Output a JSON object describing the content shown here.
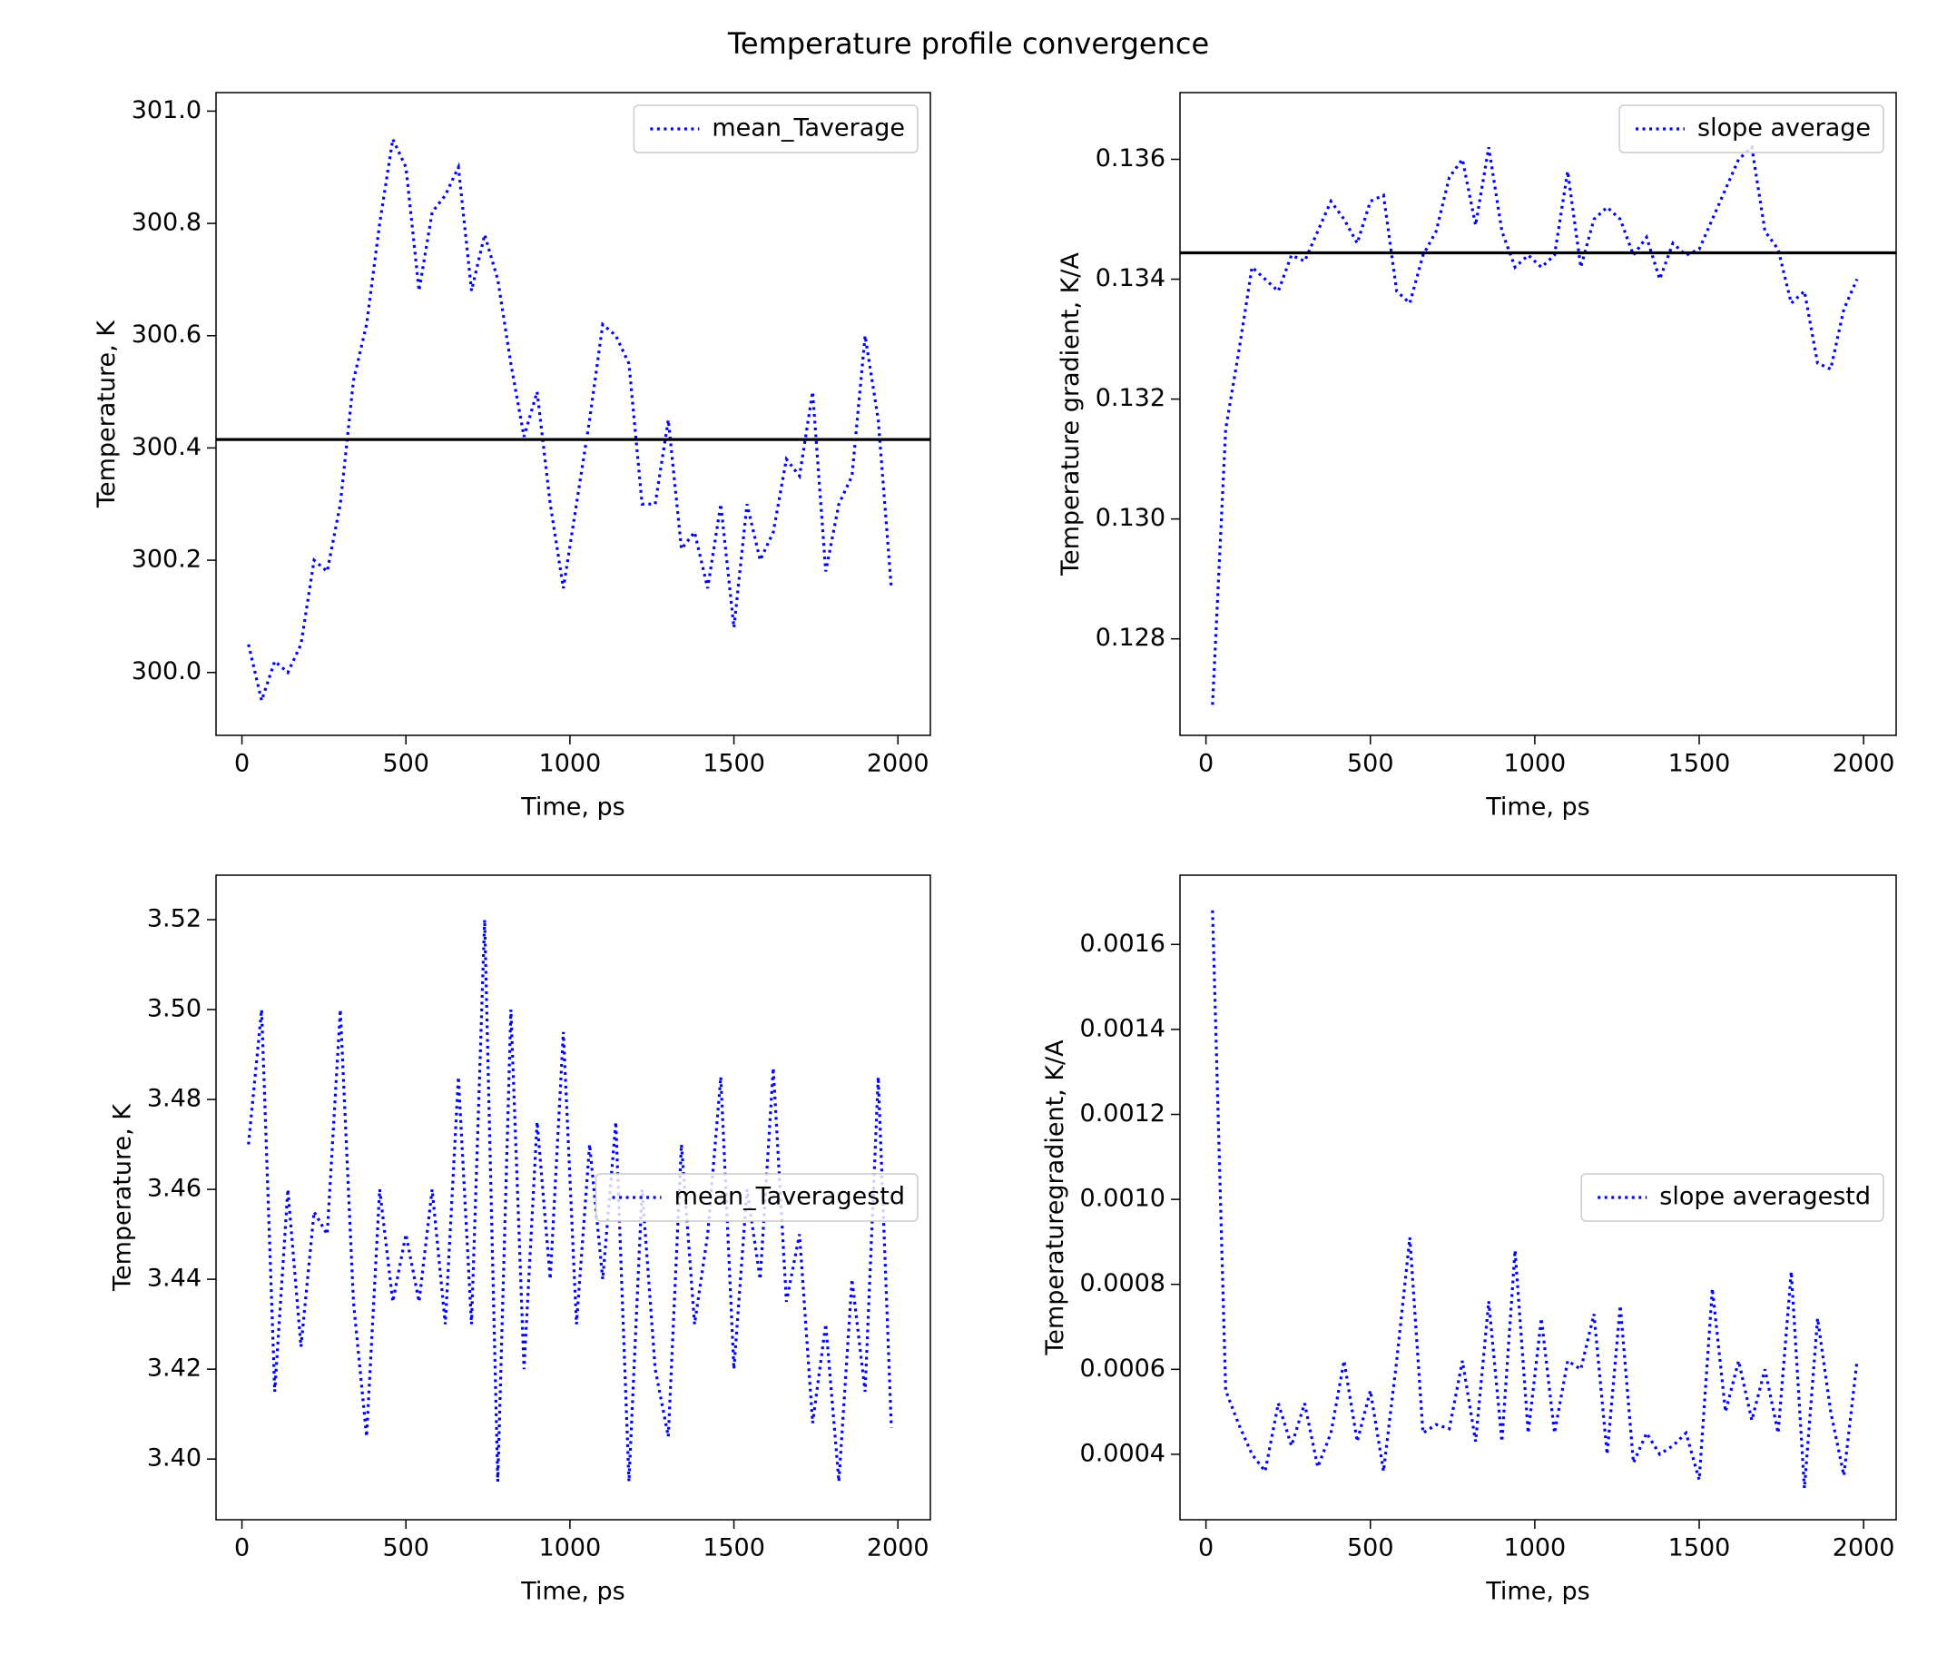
{
  "title": "Temperature profile convergence",
  "chart_data": [
    {
      "type": "line",
      "xlabel": "Time, ps",
      "ylabel": "Temperature, K",
      "x": [
        20,
        60,
        100,
        140,
        180,
        220,
        260,
        300,
        340,
        380,
        420,
        460,
        500,
        540,
        580,
        620,
        660,
        700,
        740,
        780,
        820,
        860,
        900,
        940,
        980,
        1020,
        1060,
        1100,
        1140,
        1180,
        1220,
        1260,
        1300,
        1340,
        1380,
        1420,
        1460,
        1500,
        1540,
        1580,
        1620,
        1660,
        1700,
        1740,
        1780,
        1820,
        1860,
        1900,
        1940,
        1980
      ],
      "series": [
        {
          "name": "mean_Taverage",
          "color": "blue",
          "linestyle": "dotted",
          "values": [
            300.05,
            299.95,
            300.02,
            300.0,
            300.05,
            300.2,
            300.18,
            300.3,
            300.52,
            300.62,
            300.8,
            300.95,
            300.9,
            300.68,
            300.82,
            300.85,
            300.9,
            300.68,
            300.78,
            300.7,
            300.55,
            300.42,
            300.5,
            300.3,
            300.15,
            300.3,
            300.45,
            300.62,
            300.6,
            300.55,
            300.3,
            300.3,
            300.45,
            300.22,
            300.25,
            300.15,
            300.3,
            300.08,
            300.3,
            300.2,
            300.25,
            300.38,
            300.35,
            300.5,
            300.18,
            300.3,
            300.35,
            300.6,
            300.45,
            300.15
          ]
        }
      ],
      "hline": 300.415,
      "hline_color": "black",
      "xlim": [
        -79,
        2099
      ],
      "xticks": [
        0,
        500,
        1000,
        1500,
        2000
      ],
      "ylim": [
        299.888,
        301.033
      ],
      "yticks": [
        {
          "value": 300.0,
          "label": "300.0"
        },
        300.2,
        300.4,
        300.6,
        300.8,
        {
          "value": 301.0,
          "label": "301.0"
        }
      ],
      "legend": "upper right"
    },
    {
      "type": "line",
      "xlabel": "Time, ps",
      "ylabel": "Temperature gradient, K/A",
      "x": [
        20,
        60,
        100,
        140,
        180,
        220,
        260,
        300,
        340,
        380,
        420,
        460,
        500,
        540,
        580,
        620,
        660,
        700,
        740,
        780,
        820,
        860,
        900,
        940,
        980,
        1020,
        1060,
        1100,
        1140,
        1180,
        1220,
        1260,
        1300,
        1340,
        1380,
        1420,
        1460,
        1500,
        1540,
        1580,
        1620,
        1660,
        1700,
        1740,
        1780,
        1820,
        1860,
        1900,
        1940,
        1980
      ],
      "series": [
        {
          "name": "slope average",
          "color": "blue",
          "linestyle": "dotted",
          "values": [
            0.1269,
            0.1315,
            0.1328,
            0.1342,
            0.134,
            0.1338,
            0.1344,
            0.1343,
            0.1348,
            0.1353,
            0.135,
            0.1346,
            0.1353,
            0.1354,
            0.1338,
            0.1336,
            0.1344,
            0.1348,
            0.1357,
            0.136,
            0.1349,
            0.1362,
            0.1348,
            0.1342,
            0.1344,
            0.1342,
            0.1344,
            0.1358,
            0.1342,
            0.135,
            0.1352,
            0.135,
            0.1344,
            0.1347,
            0.134,
            0.1346,
            0.1344,
            0.1345,
            0.135,
            0.1355,
            0.136,
            0.1362,
            0.1348,
            0.1345,
            0.1336,
            0.1338,
            0.1326,
            0.1325,
            0.1335,
            0.134
          ]
        }
      ],
      "hline": 0.13444,
      "hline_color": "black",
      "xlim": [
        -79,
        2099
      ],
      "xticks": [
        0,
        500,
        1000,
        1500,
        2000
      ],
      "ylim": [
        0.12639,
        0.137113
      ],
      "yticks": [
        0.128,
        {
          "value": 0.13,
          "label": "0.130"
        },
        0.132,
        0.134,
        0.136
      ],
      "legend": "upper right"
    },
    {
      "type": "line",
      "xlabel": "Time, ps",
      "ylabel": "Temperature, K",
      "x": [
        20,
        60,
        100,
        140,
        180,
        220,
        260,
        300,
        340,
        380,
        420,
        460,
        500,
        540,
        580,
        620,
        660,
        700,
        740,
        780,
        820,
        860,
        900,
        940,
        980,
        1020,
        1060,
        1100,
        1140,
        1180,
        1220,
        1260,
        1300,
        1340,
        1380,
        1420,
        1460,
        1500,
        1540,
        1580,
        1620,
        1660,
        1700,
        1740,
        1780,
        1820,
        1860,
        1900,
        1940,
        1980
      ],
      "series": [
        {
          "name": "mean_Taveragestd",
          "color": "blue",
          "linestyle": "dotted",
          "values": [
            3.47,
            3.5,
            3.415,
            3.46,
            3.425,
            3.455,
            3.45,
            3.5,
            3.435,
            3.405,
            3.46,
            3.435,
            3.45,
            3.435,
            3.46,
            3.43,
            3.485,
            3.43,
            3.52,
            3.395,
            3.5,
            3.42,
            3.475,
            3.44,
            3.495,
            3.43,
            3.47,
            3.44,
            3.475,
            3.395,
            3.46,
            3.42,
            3.405,
            3.47,
            3.43,
            3.45,
            3.485,
            3.42,
            3.46,
            3.44,
            3.487,
            3.435,
            3.45,
            3.408,
            3.43,
            3.395,
            3.44,
            3.415,
            3.485,
            3.407
          ]
        }
      ],
      "xlim": [
        -79,
        2099
      ],
      "xticks": [
        0,
        500,
        1000,
        1500,
        2000
      ],
      "ylim": [
        3.3865,
        3.5299
      ],
      "yticks": [
        {
          "value": 3.4,
          "label": "3.40"
        },
        3.42,
        3.44,
        3.46,
        3.48,
        {
          "value": 3.5,
          "label": "3.50"
        },
        3.52
      ],
      "legend": "center right"
    },
    {
      "type": "line",
      "xlabel": "Time, ps",
      "ylabel": "Temperaturegradient, K/A",
      "x": [
        20,
        60,
        100,
        140,
        180,
        220,
        260,
        300,
        340,
        380,
        420,
        460,
        500,
        540,
        580,
        620,
        660,
        700,
        740,
        780,
        820,
        860,
        900,
        940,
        980,
        1020,
        1060,
        1100,
        1140,
        1180,
        1220,
        1260,
        1300,
        1340,
        1380,
        1420,
        1460,
        1500,
        1540,
        1580,
        1620,
        1660,
        1700,
        1740,
        1780,
        1820,
        1860,
        1900,
        1940,
        1980
      ],
      "series": [
        {
          "name": "slope averagestd",
          "color": "blue",
          "linestyle": "dotted",
          "values": [
            0.00168,
            0.00055,
            0.00047,
            0.0004,
            0.00036,
            0.00052,
            0.00042,
            0.00052,
            0.00037,
            0.00045,
            0.00062,
            0.00043,
            0.00055,
            0.00036,
            0.00062,
            0.00091,
            0.00045,
            0.00047,
            0.00046,
            0.00062,
            0.00043,
            0.00076,
            0.00043,
            0.00088,
            0.00045,
            0.00072,
            0.00045,
            0.00062,
            0.0006,
            0.00073,
            0.0004,
            0.00075,
            0.00038,
            0.00045,
            0.0004,
            0.00042,
            0.00045,
            0.00034,
            0.00079,
            0.0005,
            0.00062,
            0.00048,
            0.0006,
            0.00045,
            0.00083,
            0.00032,
            0.00072,
            0.0005,
            0.00035,
            0.00062
          ]
        }
      ],
      "xlim": [
        -79,
        2099
      ],
      "xticks": [
        0,
        500,
        1000,
        1500,
        2000
      ],
      "ylim": [
        0.000246,
        0.001763
      ],
      "yticks": [
        0.0004,
        0.0006,
        0.0008,
        {
          "value": 0.001,
          "label": "0.0010"
        },
        0.0012,
        0.0014,
        0.0016
      ],
      "legend": "center right"
    }
  ]
}
